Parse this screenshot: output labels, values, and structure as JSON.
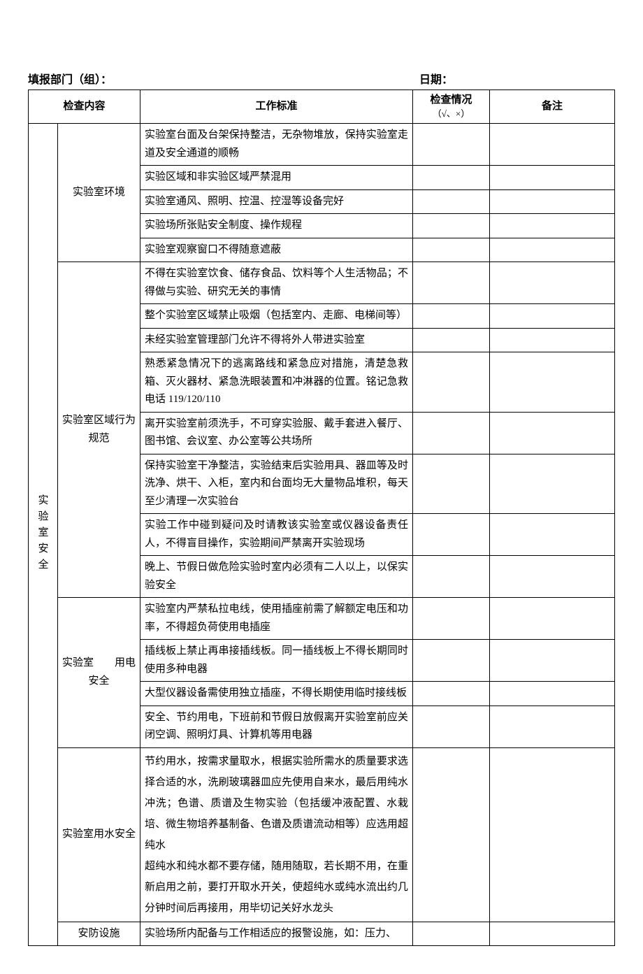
{
  "header": {
    "dept_label": "填报部门（组）：",
    "date_label": "日期："
  },
  "columns": {
    "content": "检查内容",
    "standard": "工作标准",
    "check": "检查情况",
    "check_sub": "（√、×）",
    "remark": "备注"
  },
  "category": "实验室安全",
  "sections": [
    {
      "name": "实验室环境",
      "items": [
        "实验室台面及台架保持整洁，无杂物堆放，保持实验室走道及安全通道的顺畅",
        "实验区域和非实验区域严禁混用",
        "实验室通风、照明、控温、控湿等设备完好",
        "实验场所张贴安全制度、操作规程",
        "实验室观察窗口不得随意遮蔽"
      ]
    },
    {
      "name": "实验室区域行为规范",
      "items": [
        "不得在实验室饮食、储存食品、饮料等个人生活物品；不得做与实验、研究无关的事情",
        "整个实验室区域禁止吸烟（包括室内、走廊、电梯间等）",
        "未经实验室管理部门允许不得将外人带进实验室",
        "熟悉紧急情况下的逃离路线和紧急应对措施，清楚急救箱、灭火器材、紧急洗眼装置和冲淋器的位置。铭记急救电话 119/120/110",
        "离开实验室前须洗手，不可穿实验服、戴手套进入餐厅、图书馆、会议室、办公室等公共场所",
        "保持实验室干净整洁，实验结束后实验用具、器皿等及时洗净、烘干、入柜，室内和台面均无大量物品堆积，每天至少清理一次实验台",
        "实验工作中碰到疑问及时请教该实验室或仪器设备责任人，不得盲目操作，实验期间严禁离开实验现场",
        "晚上、节假日做危险实验时室内必须有二人以上，以保实验安全"
      ]
    },
    {
      "name": "实验室　　用电安全",
      "items": [
        "实验室内严禁私拉电线，使用插座前需了解额定电压和功率，不得超负荷使用电插座",
        "插线板上禁止再串接插线板。同一插线板上不得长期同时使用多种电器",
        "大型仪器设备需使用独立插座，不得长期使用临时接线板",
        "安全、节约用电，下班前和节假日放假离开实验室前应关闭空调、照明灯具、计算机等用电器"
      ]
    },
    {
      "name": "实验室用水安全",
      "items": [
        "节约用水，按需求量取水，根据实验所需水的质量要求选择合适的水，洗刷玻璃器皿应先使用自来水，最后用纯水冲洗；色谱、质谱及生物实验（包括缓冲液配置、水栽培、微生物培养基制备、色谱及质谱流动相等）应选用超纯水",
        "超纯水和纯水都不要存储，随用随取，若长期不用，在重新启用之前，要打开取水开关，使超纯水或纯水流出约几分钟时间后再接用，用毕切记关好水龙头"
      ]
    },
    {
      "name": "安防设施",
      "items": [
        "实验场所内配备与工作相适应的报警设施，如：压力、"
      ]
    }
  ]
}
